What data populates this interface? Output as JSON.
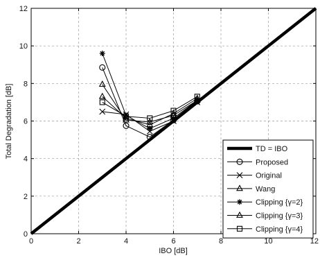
{
  "chart_data": {
    "type": "line",
    "title": "",
    "xlabel": "IBO [dB]",
    "ylabel": "Total Degradation [dB]",
    "xlim": [
      0,
      12
    ],
    "ylim": [
      0,
      12
    ],
    "xticks": [
      0,
      2,
      4,
      6,
      8,
      10,
      12
    ],
    "yticks": [
      0,
      2,
      4,
      6,
      8,
      10,
      12
    ],
    "grid": true,
    "legend_position": "bottom-right",
    "series": [
      {
        "name": "TD = IBO",
        "marker": "none",
        "linewidth": 4.5,
        "x": [
          0,
          12
        ],
        "y": [
          0,
          12
        ]
      },
      {
        "name": "Proposed",
        "marker": "circle",
        "linewidth": 1,
        "x": [
          3,
          4,
          5,
          6,
          7
        ],
        "y": [
          8.85,
          5.75,
          5.15,
          6.05,
          7.05
        ]
      },
      {
        "name": "Original",
        "marker": "x",
        "linewidth": 1,
        "x": [
          3,
          4,
          5,
          6,
          7
        ],
        "y": [
          6.5,
          6.35,
          5.45,
          6.0,
          7.0
        ]
      },
      {
        "name": "Wang",
        "marker": "triangle",
        "linewidth": 1,
        "x": [
          3,
          4,
          5,
          6,
          7
        ],
        "y": [
          7.95,
          6.05,
          5.95,
          6.3,
          7.1
        ]
      },
      {
        "name": "Clipping {γ=2}",
        "marker": "asterisk",
        "linewidth": 1,
        "x": [
          3,
          4,
          5,
          6,
          7
        ],
        "y": [
          9.6,
          6.3,
          5.6,
          6.15,
          7.1
        ]
      },
      {
        "name": "Clipping {γ=3}",
        "marker": "triangle",
        "linewidth": 1,
        "x": [
          3,
          4,
          5,
          6,
          7
        ],
        "y": [
          7.3,
          6.15,
          5.8,
          6.4,
          7.2
        ]
      },
      {
        "name": "Clipping {γ=4}",
        "marker": "square",
        "linewidth": 1,
        "x": [
          3,
          4,
          5,
          6,
          7
        ],
        "y": [
          7.0,
          6.25,
          6.15,
          6.55,
          7.3
        ]
      }
    ]
  }
}
